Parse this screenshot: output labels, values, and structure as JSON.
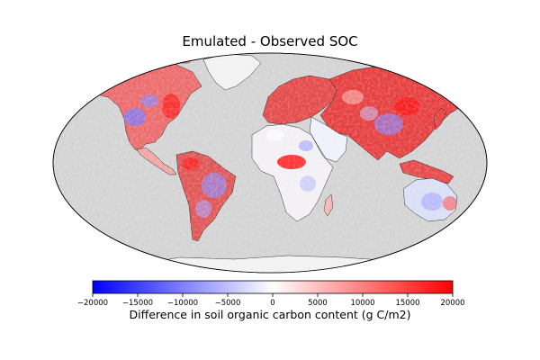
{
  "title": "Emulated - Observed SOC",
  "colorbar": {
    "label": "Difference in soil organic carbon content (g C/m2)",
    "min": -20000,
    "max": 20000,
    "ticks": [
      "−20000",
      "−15000",
      "−10000",
      "−5000",
      "0",
      "5000",
      "10000",
      "15000",
      "20000"
    ],
    "colormap": "bwr",
    "colors": {
      "negative": "#0000ff",
      "zero": "#ffffff",
      "positive": "#ff0000"
    }
  },
  "map": {
    "projection": "robinson",
    "ocean_color": "#d3d3d3",
    "no_data_color": "#f2f2f2",
    "coastline_color": "#000000"
  }
}
